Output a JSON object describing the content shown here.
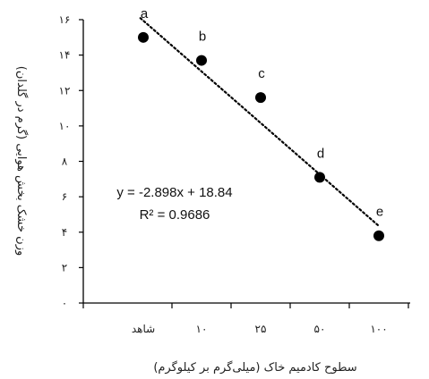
{
  "chart_data": {
    "type": "scatter",
    "title": "",
    "xlabel": "سطوح کادمیم خاک (میلی‌گرم بر کیلوگرم)",
    "ylabel": "وزن خشک بخش هوایی (گرم در گلدان)",
    "categories": [
      "شاهد",
      "۱۰",
      "۲۵",
      "۵۰",
      "۱۰۰"
    ],
    "x": [
      1,
      2,
      3,
      4,
      5
    ],
    "values": [
      15.0,
      13.7,
      11.6,
      7.1,
      3.8
    ],
    "point_labels": [
      "a",
      "b",
      "c",
      "d",
      "e"
    ],
    "ylim": [
      0,
      16
    ],
    "yticks": [
      0,
      2,
      4,
      6,
      8,
      10,
      12,
      14,
      16
    ],
    "ytick_labels": [
      "۰",
      "۲",
      "۴",
      "۶",
      "۸",
      "۱۰",
      "۱۲",
      "۱۴",
      "۱۶"
    ],
    "trendline": {
      "type": "linear",
      "slope": -2.898,
      "intercept": 18.84,
      "equation": "y = -2.898x + 18.84",
      "r_squared": "R² = 0.9686",
      "style": "dotted"
    },
    "grid": false,
    "legend": "none",
    "colors": {
      "marker": "#000000",
      "trendline": "#000000",
      "axis": "#000000"
    }
  }
}
